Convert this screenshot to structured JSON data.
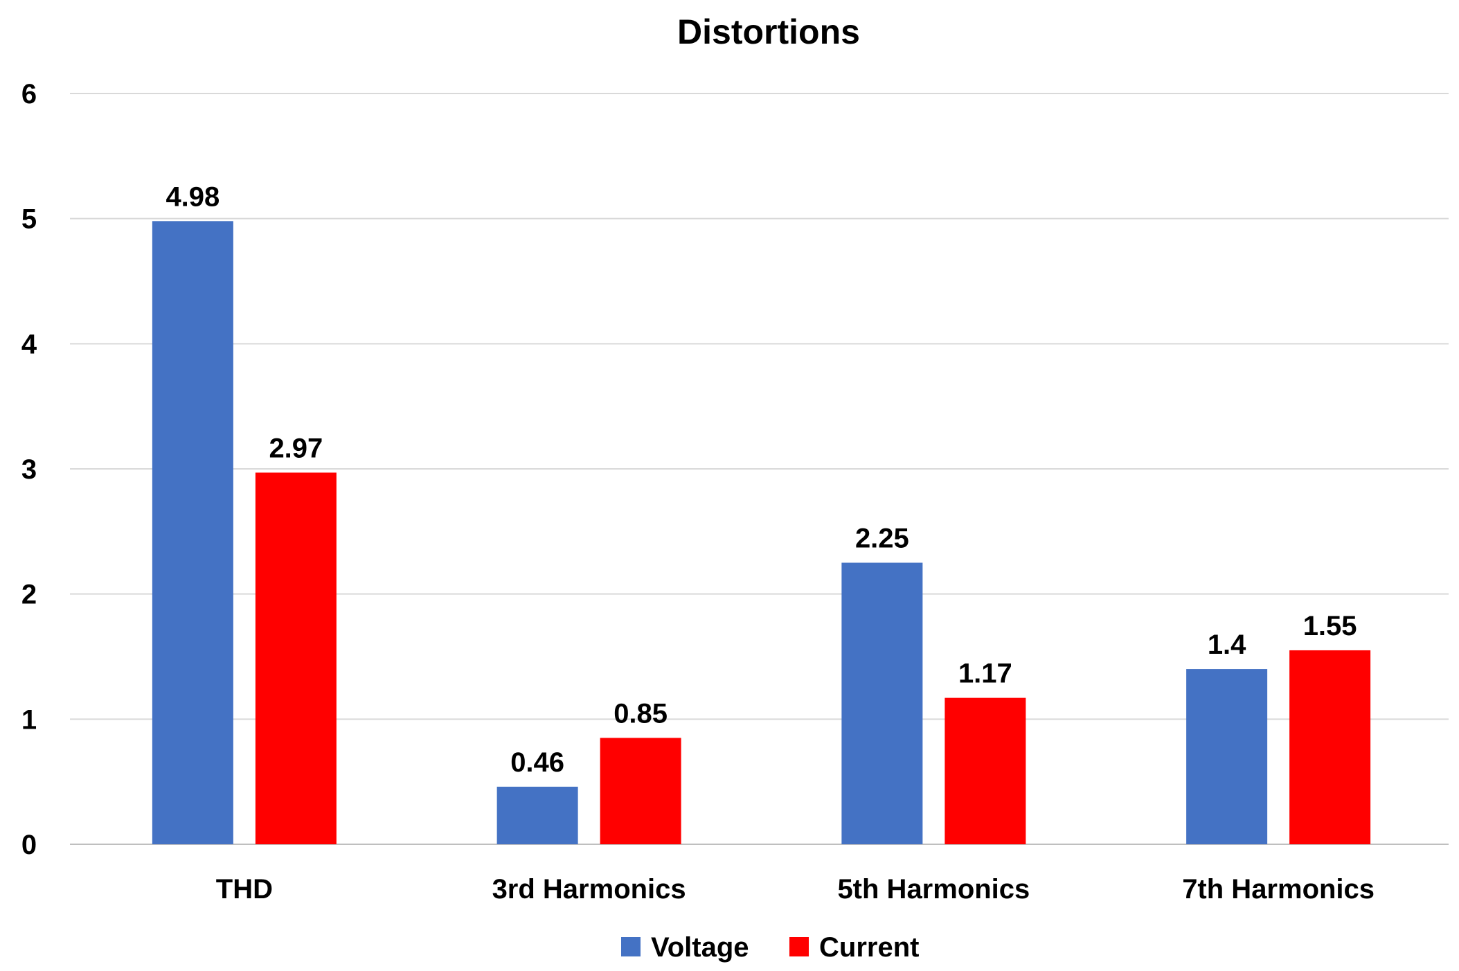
{
  "chart_data": {
    "type": "bar",
    "title": "Distortions",
    "xlabel": "",
    "ylabel": "",
    "categories": [
      "THD",
      "3rd Harmonics",
      "5th Harmonics",
      "7th Harmonics"
    ],
    "series": [
      {
        "name": "Voltage",
        "color": "#4472c4",
        "values": [
          4.98,
          0.46,
          2.25,
          1.4
        ]
      },
      {
        "name": "Current",
        "color": "#ff0000",
        "values": [
          2.97,
          0.85,
          1.17,
          1.55
        ]
      }
    ],
    "ylim": [
      0,
      6
    ],
    "yticks": [
      0,
      1,
      2,
      3,
      4,
      5,
      6
    ],
    "grid": true,
    "legend": "bottom-center"
  }
}
